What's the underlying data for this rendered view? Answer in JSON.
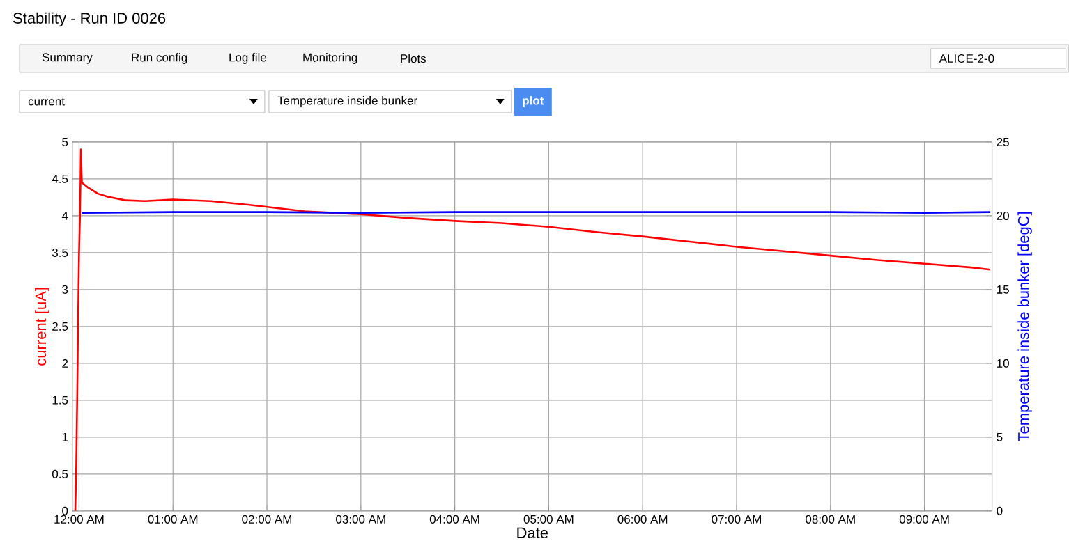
{
  "chart_data": {
    "type": "line",
    "title": "Stability - Run ID 0026",
    "annotations": [
      "Summary",
      "Run config",
      "Log file",
      "Monitoring",
      "Plots",
      "ALICE-2-0",
      "current",
      "Temperature inside bunker",
      "plot"
    ],
    "xlabel": "Date",
    "ylabel": "current [uA]",
    "y2label": "Temperature inside bunker [degC]",
    "xlim": [
      -0.07,
      9.72
    ],
    "xticks": [
      {
        "value": 0,
        "label": "12:00 AM"
      },
      {
        "value": 1,
        "label": "01:00 AM"
      },
      {
        "value": 2,
        "label": "02:00 AM"
      },
      {
        "value": 3,
        "label": "03:00 AM"
      },
      {
        "value": 4,
        "label": "04:00 AM"
      },
      {
        "value": 5,
        "label": "05:00 AM"
      },
      {
        "value": 6,
        "label": "06:00 AM"
      },
      {
        "value": 7,
        "label": "07:00 AM"
      },
      {
        "value": 8,
        "label": "08:00 AM"
      },
      {
        "value": 9,
        "label": "09:00 AM"
      }
    ],
    "ylim": [
      0,
      5
    ],
    "yticks": [
      0,
      0.5,
      1,
      1.5,
      2,
      2.5,
      3,
      3.5,
      4,
      4.5,
      5
    ],
    "y2lim": [
      0,
      25
    ],
    "y2ticks": [
      0,
      5,
      10,
      15,
      20,
      25
    ],
    "grid": true,
    "series": [
      {
        "color": "#ff0000",
        "axis": "y",
        "x": [
          -0.04,
          -0.03,
          -0.02,
          -0.01,
          0.0,
          0.01,
          0.02,
          0.03,
          0.1,
          0.2,
          0.3,
          0.5,
          0.7,
          1.0,
          1.4,
          1.8,
          2.0,
          2.4,
          3.0,
          3.5,
          4.0,
          4.5,
          5.0,
          5.5,
          6.0,
          6.5,
          7.0,
          7.5,
          8.0,
          8.5,
          9.0,
          9.5,
          9.7
        ],
        "values": [
          0,
          0.6,
          1.5,
          2.6,
          3.5,
          4.0,
          4.9,
          4.45,
          4.38,
          4.3,
          4.26,
          4.21,
          4.2,
          4.22,
          4.2,
          4.15,
          4.12,
          4.06,
          4.02,
          3.97,
          3.93,
          3.9,
          3.85,
          3.78,
          3.72,
          3.65,
          3.58,
          3.52,
          3.46,
          3.4,
          3.35,
          3.3,
          3.27
        ]
      },
      {
        "color": "#0000ff",
        "axis": "y2",
        "x": [
          0.03,
          1,
          2,
          3,
          4,
          5,
          6,
          7,
          8,
          9,
          9.7
        ],
        "values": [
          20.2,
          20.25,
          20.25,
          20.2,
          20.25,
          20.25,
          20.25,
          20.25,
          20.25,
          20.2,
          20.25
        ]
      }
    ]
  }
}
